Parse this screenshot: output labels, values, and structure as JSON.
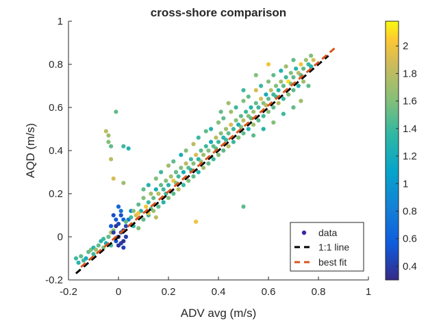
{
  "chart_data": {
    "type": "scatter",
    "title": "cross-shore comparison",
    "xlabel": "ADV avg (m/s)",
    "ylabel": "AQD (m/s)",
    "xlim": [
      -0.2,
      1.0
    ],
    "ylim": [
      -0.2,
      1.0
    ],
    "xticks": [
      -0.2,
      0,
      0.2,
      0.4,
      0.6,
      0.8,
      1
    ],
    "yticks": [
      -0.2,
      0,
      0.2,
      0.4,
      0.6,
      0.8,
      1
    ],
    "xtick_labels": [
      "-0.2",
      "0",
      "0.2",
      "0.4",
      "0.6",
      "0.8",
      "1"
    ],
    "ytick_labels": [
      "-0.2",
      "0",
      "0.2",
      "0.4",
      "0.6",
      "0.8",
      "1"
    ],
    "grid": false,
    "legend_position": "bottom-right",
    "legend": [
      "data",
      "1:1 line",
      "best fit"
    ],
    "colorbar": {
      "colormap": "parula",
      "range": [
        0.3,
        2.18
      ],
      "ticks": [
        0.4,
        0.6,
        0.8,
        1,
        1.2,
        1.4,
        1.6,
        1.8,
        2
      ],
      "tick_labels": [
        "0.4",
        "0.6",
        "0.8",
        "1",
        "1.2",
        "1.4",
        "1.6",
        "1.8",
        "2"
      ]
    },
    "series": [
      {
        "name": "data",
        "kind": "scatter",
        "color_scale": "colorbar",
        "points": [
          [
            -0.17,
            -0.1,
            1.4
          ],
          [
            -0.16,
            -0.12,
            1.3
          ],
          [
            -0.15,
            -0.09,
            1.5
          ],
          [
            -0.14,
            -0.11,
            1.4
          ],
          [
            -0.13,
            -0.1,
            1.2
          ],
          [
            -0.12,
            -0.07,
            1.5
          ],
          [
            -0.11,
            -0.06,
            1.6
          ],
          [
            -0.1,
            -0.05,
            1.3
          ],
          [
            -0.1,
            -0.08,
            1.4
          ],
          [
            -0.09,
            -0.06,
            1.7
          ],
          [
            -0.08,
            -0.04,
            1.5
          ],
          [
            -0.07,
            -0.02,
            1.3
          ],
          [
            -0.06,
            -0.05,
            1.6
          ],
          [
            -0.06,
            -0.01,
            1.4
          ],
          [
            -0.05,
            -0.03,
            1.2
          ],
          [
            -0.04,
            0.0,
            1.5
          ],
          [
            -0.03,
            0.02,
            1.8
          ],
          [
            -0.03,
            -0.04,
            1.4
          ],
          [
            -0.02,
            0.03,
            1.6
          ],
          [
            -0.02,
            0.02,
            0.4
          ],
          [
            -0.01,
            0.05,
            0.35
          ],
          [
            -0.01,
            -0.02,
            0.5
          ],
          [
            0.0,
            0.0,
            0.38
          ],
          [
            0.0,
            0.06,
            0.45
          ],
          [
            0.01,
            -0.03,
            0.4
          ],
          [
            0.01,
            0.1,
            0.5
          ],
          [
            0.02,
            0.03,
            0.32
          ],
          [
            0.02,
            -0.05,
            0.42
          ],
          [
            0.0,
            -0.04,
            0.36
          ],
          [
            -0.01,
            0.08,
            0.55
          ],
          [
            0.03,
            0.0,
            0.4
          ],
          [
            0.02,
            0.08,
            0.6
          ],
          [
            -0.02,
            0.1,
            0.5
          ],
          [
            0.01,
            0.12,
            0.7
          ],
          [
            0.03,
            0.05,
            0.45
          ],
          [
            0.0,
            0.14,
            0.65
          ],
          [
            -0.03,
            0.05,
            0.55
          ],
          [
            0.02,
            -0.02,
            0.33
          ],
          [
            0.01,
            0.02,
            0.48
          ],
          [
            0.04,
            0.08,
            0.75
          ],
          [
            0.05,
            0.12,
            0.9
          ],
          [
            -0.05,
            0.49,
            1.8
          ],
          [
            -0.04,
            0.47,
            1.7
          ],
          [
            -0.04,
            0.44,
            1.6
          ],
          [
            -0.03,
            0.42,
            1.5
          ],
          [
            0.02,
            0.42,
            1.4
          ],
          [
            0.04,
            0.41,
            1.3
          ],
          [
            -0.03,
            0.36,
            1.8
          ],
          [
            -0.01,
            0.58,
            1.5
          ],
          [
            -0.02,
            0.27,
            1.9
          ],
          [
            0.02,
            0.25,
            1.7
          ],
          [
            0.5,
            0.14,
            1.5
          ],
          [
            0.31,
            0.07,
            2.0
          ],
          [
            0.03,
            0.07,
            1.5
          ],
          [
            0.05,
            0.09,
            1.4
          ],
          [
            0.06,
            0.12,
            1.6
          ],
          [
            0.07,
            0.1,
            1.9
          ],
          [
            0.08,
            0.15,
            1.5
          ],
          [
            0.09,
            0.12,
            1.3
          ],
          [
            0.1,
            0.18,
            1.6
          ],
          [
            0.11,
            0.14,
            2.0
          ],
          [
            0.12,
            0.16,
            1.4
          ],
          [
            0.13,
            0.2,
            1.7
          ],
          [
            0.14,
            0.18,
            1.5
          ],
          [
            0.15,
            0.22,
            1.2
          ],
          [
            0.16,
            0.2,
            1.8
          ],
          [
            0.17,
            0.24,
            1.5
          ],
          [
            0.18,
            0.22,
            1.4
          ],
          [
            0.19,
            0.26,
            1.6
          ],
          [
            0.2,
            0.24,
            1.3
          ],
          [
            0.21,
            0.28,
            1.7
          ],
          [
            0.22,
            0.26,
            2.0
          ],
          [
            0.23,
            0.3,
            1.5
          ],
          [
            0.24,
            0.28,
            1.4
          ],
          [
            0.25,
            0.32,
            1.6
          ],
          [
            0.26,
            0.3,
            1.2
          ],
          [
            0.27,
            0.34,
            1.8
          ],
          [
            0.28,
            0.32,
            1.5
          ],
          [
            0.29,
            0.36,
            1.4
          ],
          [
            0.3,
            0.34,
            1.6
          ],
          [
            0.31,
            0.38,
            1.9
          ],
          [
            0.32,
            0.36,
            1.3
          ],
          [
            0.33,
            0.4,
            1.5
          ],
          [
            0.34,
            0.38,
            1.7
          ],
          [
            0.35,
            0.42,
            1.4
          ],
          [
            0.36,
            0.4,
            1.6
          ],
          [
            0.37,
            0.44,
            1.2
          ],
          [
            0.38,
            0.42,
            1.5
          ],
          [
            0.39,
            0.46,
            1.8
          ],
          [
            0.4,
            0.44,
            1.4
          ],
          [
            0.41,
            0.48,
            1.6
          ],
          [
            0.42,
            0.46,
            1.3
          ],
          [
            0.43,
            0.5,
            1.7
          ],
          [
            0.44,
            0.48,
            1.5
          ],
          [
            0.45,
            0.52,
            1.9
          ],
          [
            0.46,
            0.5,
            1.4
          ],
          [
            0.47,
            0.54,
            1.6
          ],
          [
            0.48,
            0.52,
            1.2
          ],
          [
            0.49,
            0.56,
            1.5
          ],
          [
            0.5,
            0.54,
            1.8
          ],
          [
            0.51,
            0.58,
            1.4
          ],
          [
            0.52,
            0.56,
            1.6
          ],
          [
            0.53,
            0.6,
            1.3
          ],
          [
            0.54,
            0.58,
            1.7
          ],
          [
            0.55,
            0.62,
            1.5
          ],
          [
            0.56,
            0.6,
            1.4
          ],
          [
            0.57,
            0.64,
            1.9
          ],
          [
            0.58,
            0.62,
            1.6
          ],
          [
            0.59,
            0.66,
            1.2
          ],
          [
            0.6,
            0.64,
            1.5
          ],
          [
            0.61,
            0.68,
            1.8
          ],
          [
            0.62,
            0.66,
            1.4
          ],
          [
            0.63,
            0.7,
            1.6
          ],
          [
            0.64,
            0.68,
            1.3
          ],
          [
            0.65,
            0.72,
            1.7
          ],
          [
            0.66,
            0.7,
            1.5
          ],
          [
            0.67,
            0.74,
            1.4
          ],
          [
            0.68,
            0.72,
            2.1
          ],
          [
            0.69,
            0.76,
            1.6
          ],
          [
            0.7,
            0.74,
            1.5
          ],
          [
            0.71,
            0.78,
            1.3
          ],
          [
            0.72,
            0.76,
            1.8
          ],
          [
            0.73,
            0.8,
            2.0
          ],
          [
            0.74,
            0.78,
            1.5
          ],
          [
            0.75,
            0.82,
            1.7
          ],
          [
            0.76,
            0.8,
            1.4
          ],
          [
            0.77,
            0.84,
            1.6
          ],
          [
            0.78,
            0.82,
            1.9
          ],
          [
            0.06,
            0.05,
            1.3
          ],
          [
            0.08,
            0.04,
            1.6
          ],
          [
            0.1,
            0.08,
            1.5
          ],
          [
            0.12,
            0.1,
            1.4
          ],
          [
            0.14,
            0.12,
            1.7
          ],
          [
            0.16,
            0.14,
            1.5
          ],
          [
            0.18,
            0.16,
            1.3
          ],
          [
            0.2,
            0.18,
            1.6
          ],
          [
            0.22,
            0.2,
            1.5
          ],
          [
            0.24,
            0.22,
            1.8
          ],
          [
            0.26,
            0.24,
            1.4
          ],
          [
            0.28,
            0.26,
            1.6
          ],
          [
            0.3,
            0.28,
            1.5
          ],
          [
            0.32,
            0.3,
            1.3
          ],
          [
            0.34,
            0.32,
            1.7
          ],
          [
            0.36,
            0.34,
            1.5
          ],
          [
            0.38,
            0.36,
            1.4
          ],
          [
            0.4,
            0.38,
            1.6
          ],
          [
            0.42,
            0.4,
            1.5
          ],
          [
            0.44,
            0.42,
            1.8
          ],
          [
            0.46,
            0.44,
            1.4
          ],
          [
            0.48,
            0.46,
            1.6
          ],
          [
            0.5,
            0.48,
            1.5
          ],
          [
            0.52,
            0.5,
            1.3
          ],
          [
            0.54,
            0.52,
            1.7
          ],
          [
            0.56,
            0.54,
            1.5
          ],
          [
            0.58,
            0.56,
            1.4
          ],
          [
            0.6,
            0.58,
            1.6
          ],
          [
            0.62,
            0.6,
            1.5
          ],
          [
            0.64,
            0.62,
            1.8
          ],
          [
            0.66,
            0.64,
            1.4
          ],
          [
            0.68,
            0.66,
            1.6
          ],
          [
            0.7,
            0.68,
            1.5
          ],
          [
            0.72,
            0.7,
            1.3
          ],
          [
            0.74,
            0.72,
            1.7
          ],
          [
            0.1,
            0.22,
            1.5
          ],
          [
            0.12,
            0.24,
            1.3
          ],
          [
            0.15,
            0.27,
            1.6
          ],
          [
            0.17,
            0.3,
            1.4
          ],
          [
            0.2,
            0.33,
            1.7
          ],
          [
            0.22,
            0.35,
            1.5
          ],
          [
            0.25,
            0.38,
            1.2
          ],
          [
            0.27,
            0.4,
            1.6
          ],
          [
            0.3,
            0.43,
            1.8
          ],
          [
            0.32,
            0.46,
            1.4
          ],
          [
            0.35,
            0.49,
            1.5
          ],
          [
            0.37,
            0.5,
            1.3
          ],
          [
            0.4,
            0.53,
            1.6
          ],
          [
            0.42,
            0.55,
            1.5
          ],
          [
            0.45,
            0.58,
            1.7
          ],
          [
            0.47,
            0.6,
            1.4
          ],
          [
            0.5,
            0.63,
            1.6
          ],
          [
            0.52,
            0.65,
            1.5
          ],
          [
            0.55,
            0.68,
            1.9
          ],
          [
            0.57,
            0.7,
            1.4
          ],
          [
            0.6,
            0.72,
            1.6
          ],
          [
            0.62,
            0.75,
            1.5
          ],
          [
            0.65,
            0.77,
            1.3
          ],
          [
            0.67,
            0.79,
            1.7
          ],
          [
            0.7,
            0.82,
            1.5
          ],
          [
            0.13,
            0.13,
            1.5
          ],
          [
            0.19,
            0.2,
            1.4
          ],
          [
            0.23,
            0.25,
            1.6
          ],
          [
            0.29,
            0.31,
            1.3
          ],
          [
            0.33,
            0.35,
            1.7
          ],
          [
            0.39,
            0.41,
            1.5
          ],
          [
            0.43,
            0.45,
            1.4
          ],
          [
            0.49,
            0.51,
            1.6
          ],
          [
            0.53,
            0.55,
            1.5
          ],
          [
            0.59,
            0.61,
            1.8
          ],
          [
            0.63,
            0.65,
            1.4
          ],
          [
            0.69,
            0.71,
            1.6
          ],
          [
            0.73,
            0.75,
            1.5
          ],
          [
            0.77,
            0.79,
            1.3
          ],
          [
            0.41,
            0.58,
            1.5
          ],
          [
            0.44,
            0.62,
            1.7
          ],
          [
            0.5,
            0.68,
            1.4
          ],
          [
            0.55,
            0.75,
            1.6
          ],
          [
            0.6,
            0.8,
            2.0
          ],
          [
            0.54,
            0.47,
            1.5
          ],
          [
            0.58,
            0.5,
            1.3
          ],
          [
            0.62,
            0.53,
            1.6
          ],
          [
            0.66,
            0.57,
            1.4
          ],
          [
            0.7,
            0.6,
            1.5
          ],
          [
            0.73,
            0.63,
            1.7
          ],
          [
            0.76,
            0.7,
            1.5
          ],
          [
            0.12,
            0.11,
            2.0
          ],
          [
            0.08,
            0.11,
            2.0
          ],
          [
            0.15,
            0.09,
            1.8
          ]
        ]
      },
      {
        "name": "1:1 line",
        "kind": "line",
        "color": "#000000",
        "style": "dashed",
        "x": [
          -0.17,
          0.84
        ],
        "y": [
          -0.17,
          0.84
        ]
      },
      {
        "name": "best fit",
        "kind": "line",
        "color": "#d95319",
        "style": "dashed",
        "x": [
          -0.15,
          0.87
        ],
        "y": [
          -0.14,
          0.88
        ]
      }
    ]
  }
}
